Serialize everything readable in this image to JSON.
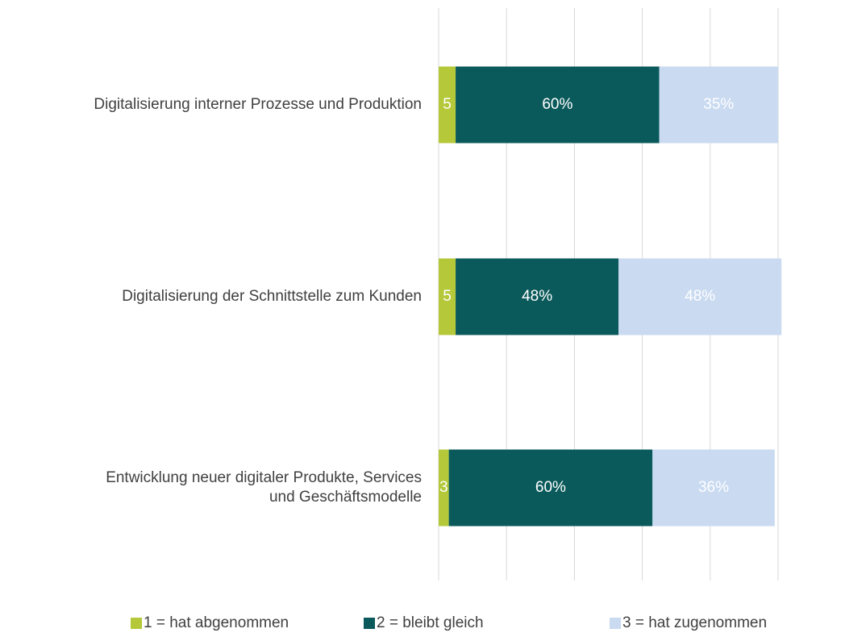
{
  "chart_data": {
    "type": "stacked_barh",
    "categories": [
      "Digitalisierung interner Prozesse und Produktion",
      "Digitalisierung der Schnittstelle zum Kunden",
      "Entwicklung neuer digitaler Produkte, Services\nund Geschäftsmodelle"
    ],
    "series": [
      {
        "name": "1 = hat abgenommen",
        "color": "#b4c839",
        "values": [
          5,
          5,
          3
        ]
      },
      {
        "name": "2 = bleibt gleich",
        "color": "#0b5a5b",
        "values": [
          60,
          48,
          60
        ],
        "value_labels": [
          "60%",
          "48%",
          "60%"
        ]
      },
      {
        "name": "3 = hat zugenommen",
        "color": "#c9daf1",
        "values": [
          35,
          48,
          36
        ],
        "value_labels": [
          "35%",
          "48%",
          "36%"
        ]
      }
    ],
    "xlim": [
      0,
      100
    ],
    "xticks": [
      0,
      20,
      40,
      60,
      80,
      100
    ],
    "grid": true,
    "legend": "bottom"
  }
}
